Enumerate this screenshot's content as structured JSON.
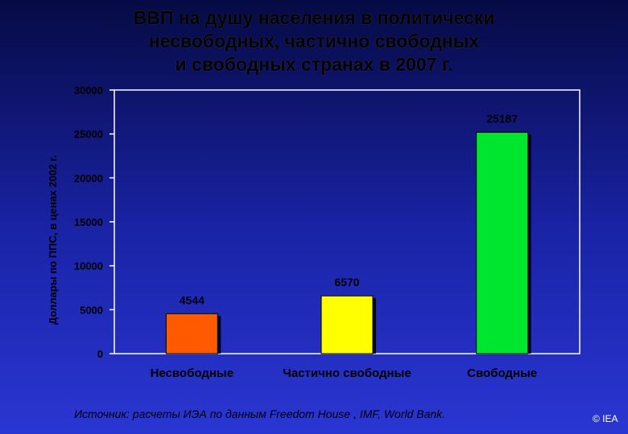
{
  "chart_data": {
    "type": "bar",
    "title_lines": [
      "ВВП на душу населения в политически",
      "несвободных, частично свободных",
      "и свободных странах в 2007 г."
    ],
    "ylabel": "Доллары по ППС, в ценах 2002 г.",
    "xlabel": "",
    "ylim": [
      0,
      30000
    ],
    "yticks": [
      0,
      5000,
      10000,
      15000,
      20000,
      25000,
      30000
    ],
    "categories": [
      "Несвободные",
      "Частично свободные",
      "Свободные"
    ],
    "values": [
      4544,
      6570,
      25187
    ],
    "value_labels": [
      "4544",
      "6570",
      "25187"
    ],
    "colors": [
      "#ff5a00",
      "#ffff00",
      "#00e62e"
    ],
    "grid": false,
    "legend": "none"
  },
  "source": "Источник:  расчеты ИЭА по данным Freedom House , IMF, World Bank.",
  "copyright": "© IEA"
}
